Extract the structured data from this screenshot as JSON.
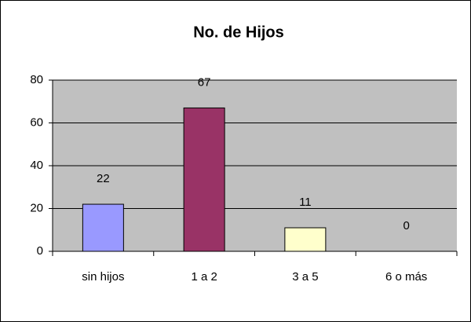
{
  "chart_data": {
    "type": "bar",
    "title": "No. de Hijos",
    "categories": [
      "sin hijos",
      "1 a 2",
      "3 a 5",
      "6 o más"
    ],
    "values": [
      22,
      67,
      11,
      0
    ],
    "colors": [
      "#9999ff",
      "#993366",
      "#ffffcc",
      "#00ffff"
    ],
    "ylim": [
      0,
      80
    ],
    "yticks": [
      0,
      20,
      40,
      60,
      80
    ],
    "grid": true
  }
}
